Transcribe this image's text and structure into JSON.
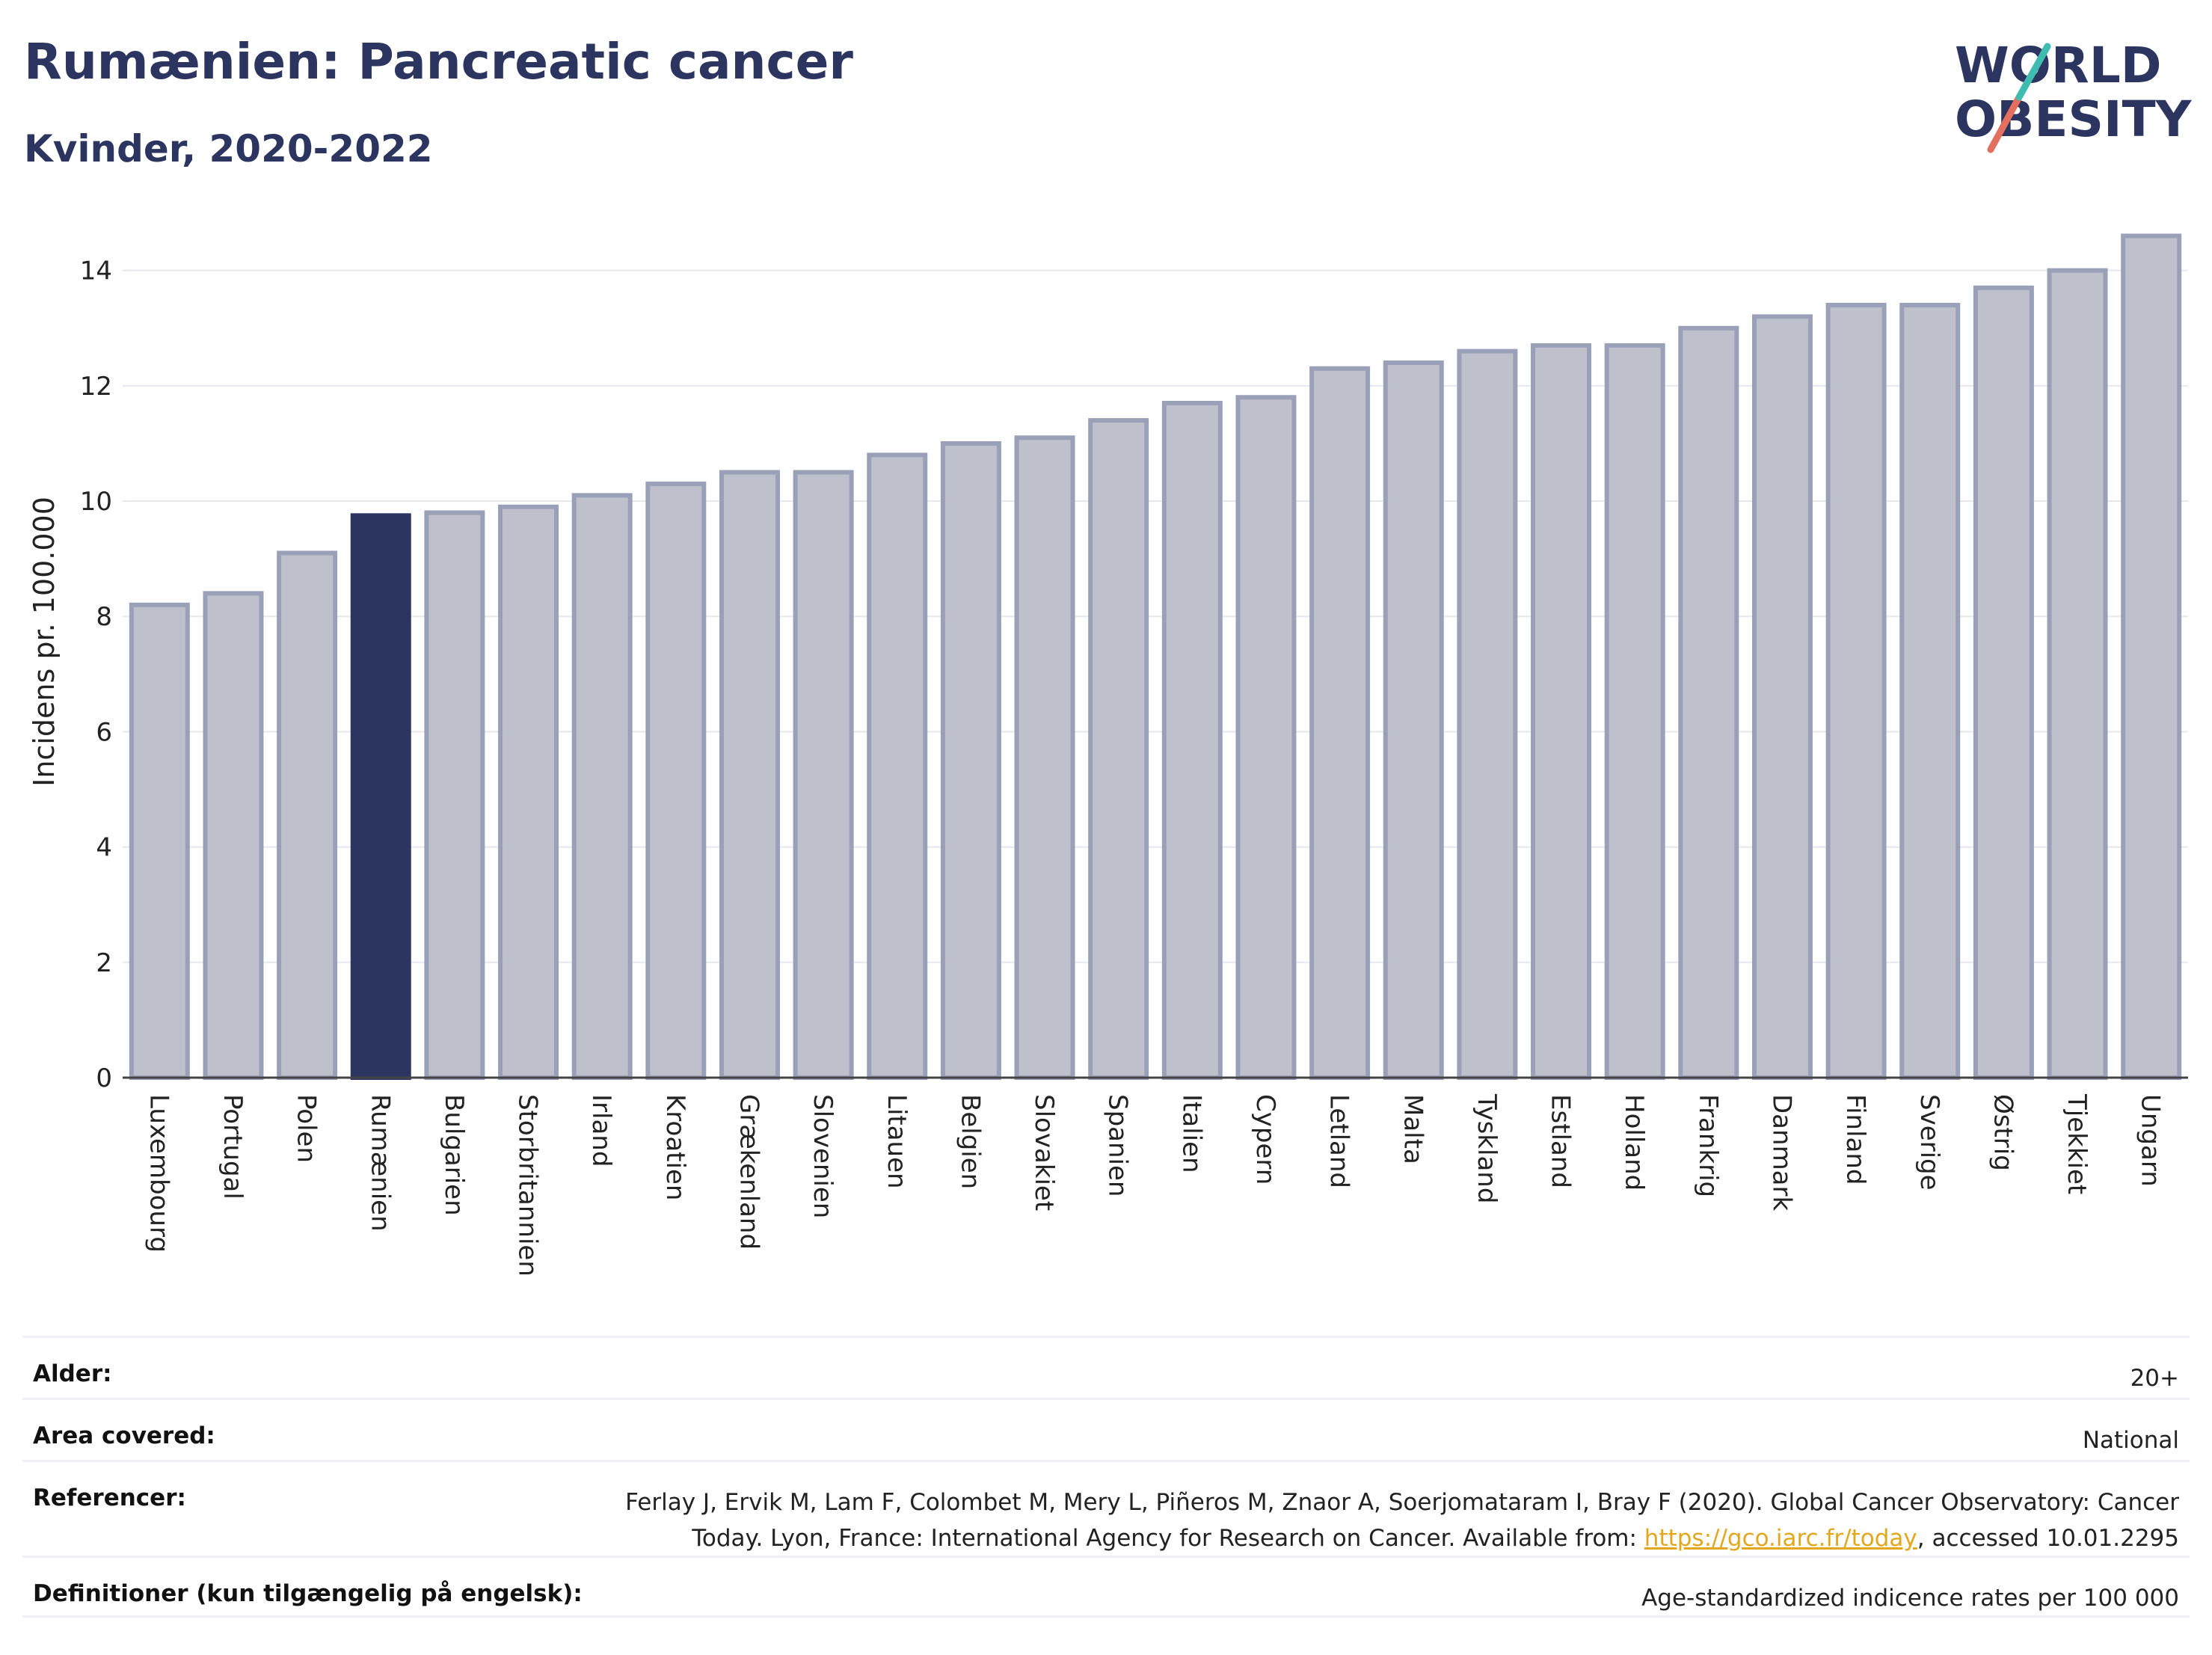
{
  "header": {
    "title": "Rumænien: Pancreatic cancer",
    "subtitle": "Kvinder, 2020-2022",
    "logo_line1": "WORLD",
    "logo_line2": "OBESITY"
  },
  "colors": {
    "highlight_bar": "#2c3560",
    "other_bar_fill": "#bec1cc",
    "other_bar_stroke": "#9aa0b8",
    "logo_teal": "#3fbcb0",
    "logo_red": "#e46f5f"
  },
  "chart_data": {
    "type": "bar",
    "categories": [
      "Luxembourg",
      "Portugal",
      "Polen",
      "Rumænien",
      "Bulgarien",
      "Storbritannien",
      "Irland",
      "Kroatien",
      "Grækenland",
      "Slovenien",
      "Litauen",
      "Belgien",
      "Slovakiet",
      "Spanien",
      "Italien",
      "Cypern",
      "Letland",
      "Malta",
      "Tyskland",
      "Estland",
      "Holland",
      "Frankrig",
      "Danmark",
      "Finland",
      "Sverige",
      "Østrig",
      "Tjekkiet",
      "Ungarn"
    ],
    "values": [
      8.2,
      8.4,
      9.1,
      9.75,
      9.8,
      9.9,
      10.1,
      10.3,
      10.5,
      10.5,
      10.8,
      11.0,
      11.1,
      11.4,
      11.7,
      11.8,
      12.3,
      12.4,
      12.6,
      12.7,
      12.7,
      13.0,
      13.2,
      13.4,
      13.4,
      13.7,
      14.0,
      14.6
    ],
    "highlight": "Rumænien",
    "ylabel": "Incidens pr. 100.000",
    "xlabel": "",
    "ylim": [
      0,
      14.8
    ],
    "yticks": [
      0,
      2,
      4,
      6,
      8,
      10,
      12,
      14
    ],
    "grid": true
  },
  "meta": {
    "rows": [
      {
        "label": "Alder:",
        "value": "20+"
      },
      {
        "label": "Area covered:",
        "value": "National"
      },
      {
        "label": "Referencer:",
        "value_line1": "Ferlay J, Ervik M, Lam F, Colombet M, Mery L, Piñeros M, Znaor A, Soerjomataram I, Bray F (2020). Global Cancer Observatory: Cancer",
        "value_line2_pre": "Today. Lyon, France: International Agency for Research on Cancer. Available from: ",
        "value_link": "https://gco.iarc.fr/today",
        "value_line2_post": ", accessed 10.01.2295"
      },
      {
        "label": "Definitioner (kun tilgængelig på engelsk):",
        "value": "Age-standardized indicence rates per 100 000"
      }
    ]
  }
}
